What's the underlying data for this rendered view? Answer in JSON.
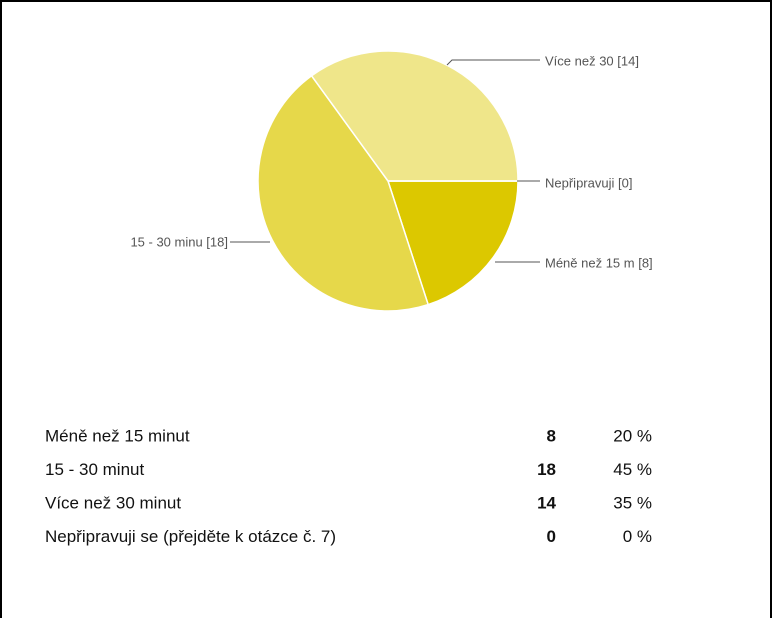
{
  "chart_data": {
    "type": "pie",
    "categories": [
      "Méně než 15 minut",
      "15 - 30 minut",
      "Více než 30 minut",
      "Nepřipravuji se (přejděte k otázce č. 7)"
    ],
    "labels": [
      "Méně než 15 m [8]",
      "15 - 30 minu [18]",
      "Více než 30  [14]",
      "Nepřipravuji  [0]"
    ],
    "values": [
      8,
      18,
      14,
      0
    ],
    "colors": [
      "#dcc800",
      "#e6d84a",
      "#efe68a",
      "#f5efb5"
    ]
  },
  "table": {
    "rows": [
      {
        "label": "Méně než 15 minut",
        "count": 8,
        "percent": "20 %"
      },
      {
        "label": "15 - 30 minut",
        "count": 18,
        "percent": "45 %"
      },
      {
        "label": "Více než 30 minut",
        "count": 14,
        "percent": "35 %"
      },
      {
        "label": "Nepřipravuji se (přejděte k otázce č. 7)",
        "count": 0,
        "percent": "0 %"
      }
    ]
  }
}
